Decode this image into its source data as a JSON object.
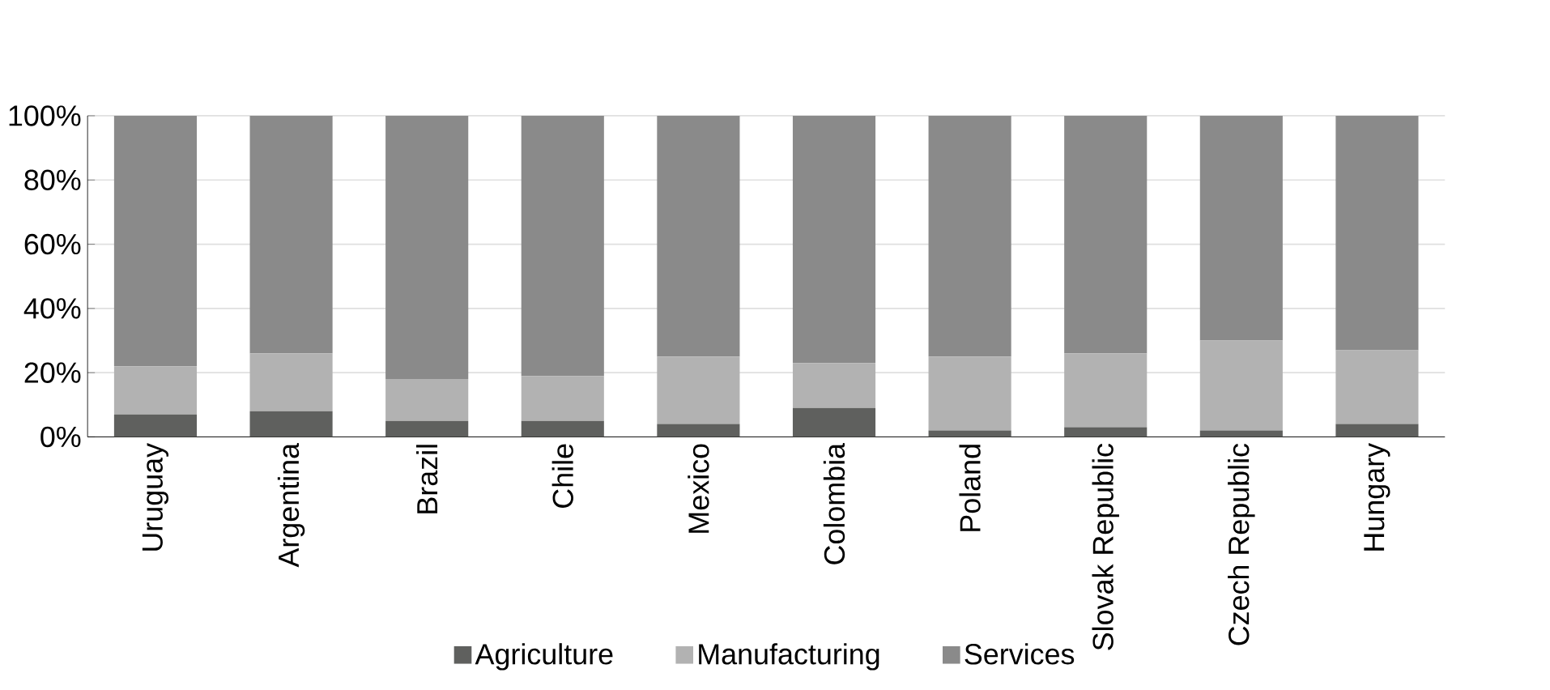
{
  "chart_data": {
    "type": "bar",
    "stacked": true,
    "categories": [
      "Uruguay",
      "Argentina",
      "Brazil",
      "Chile",
      "Mexico",
      "Colombia",
      "Poland",
      "Slovak Republic",
      "Czech Republic",
      "Hungary"
    ],
    "series": [
      {
        "name": "Agriculture",
        "color": "#5f605e",
        "values": [
          7,
          8,
          5,
          5,
          4,
          9,
          2,
          3,
          2,
          4
        ]
      },
      {
        "name": "Manufacturing",
        "color": "#b2b2b2",
        "values": [
          15,
          18,
          13,
          14,
          21,
          14,
          23,
          23,
          28,
          23
        ]
      },
      {
        "name": "Services",
        "color": "#8a8a8a",
        "values": [
          78,
          74,
          82,
          81,
          75,
          77,
          75,
          74,
          70,
          73
        ]
      }
    ],
    "ylim": [
      0,
      100
    ],
    "yticks": [
      {
        "value": 0,
        "label": "0%"
      },
      {
        "value": 20,
        "label": "20%"
      },
      {
        "value": 40,
        "label": "40%"
      },
      {
        "value": 60,
        "label": "60%"
      },
      {
        "value": 80,
        "label": "80%"
      },
      {
        "value": 100,
        "label": "100%"
      }
    ],
    "grid": "y",
    "legend": "bottom"
  }
}
